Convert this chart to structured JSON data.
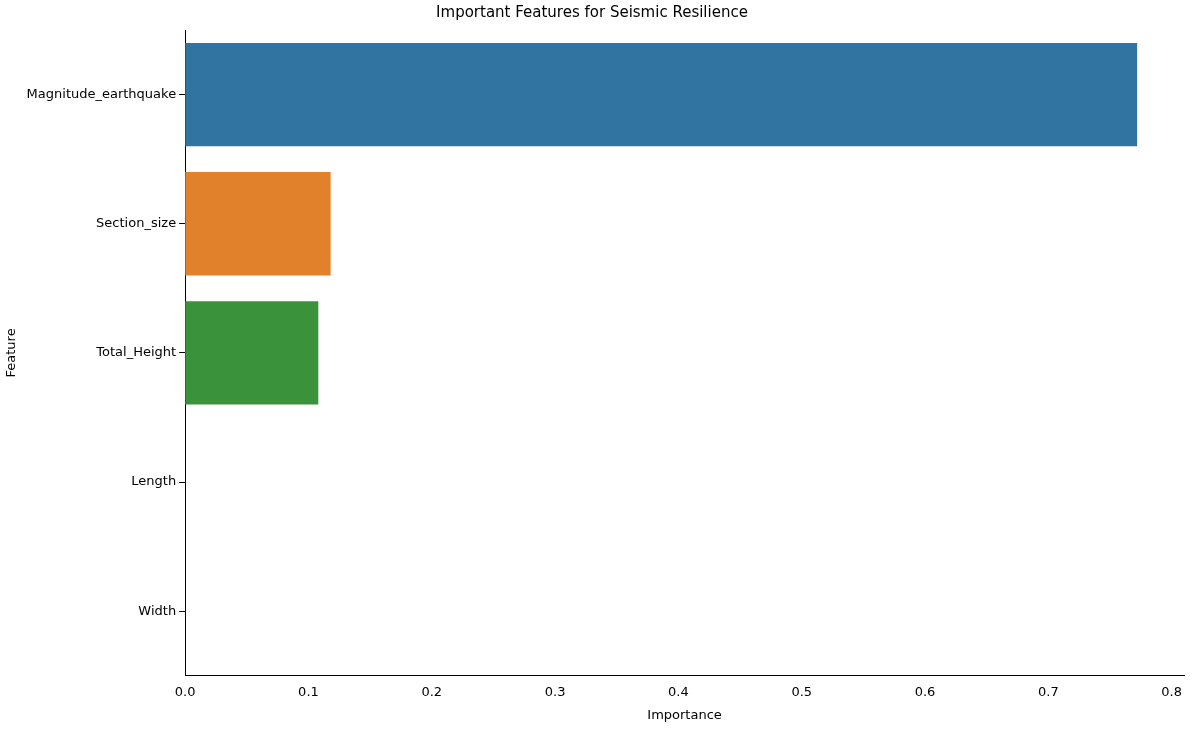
{
  "chart_data": {
    "type": "bar",
    "orientation": "horizontal",
    "title": "Important Features for Seismic Resilience",
    "xlabel": "Importance",
    "ylabel": "Feature",
    "categories": [
      "Magnitude_earthquake",
      "Section_size",
      "Total_Height",
      "Length",
      "Width"
    ],
    "values": [
      0.772,
      0.118,
      0.108,
      0,
      0
    ],
    "colors": [
      "#3274a1",
      "#e1812c",
      "#3a923a",
      "#c03d3e",
      "#9372b2"
    ],
    "xlim": [
      0,
      0.81
    ],
    "xticks": [
      {
        "value": 0,
        "label": "0.0"
      },
      0.1,
      0.2,
      0.3,
      0.4,
      0.5,
      0.6,
      0.7,
      0.8
    ],
    "grid": false,
    "legend": false
  }
}
